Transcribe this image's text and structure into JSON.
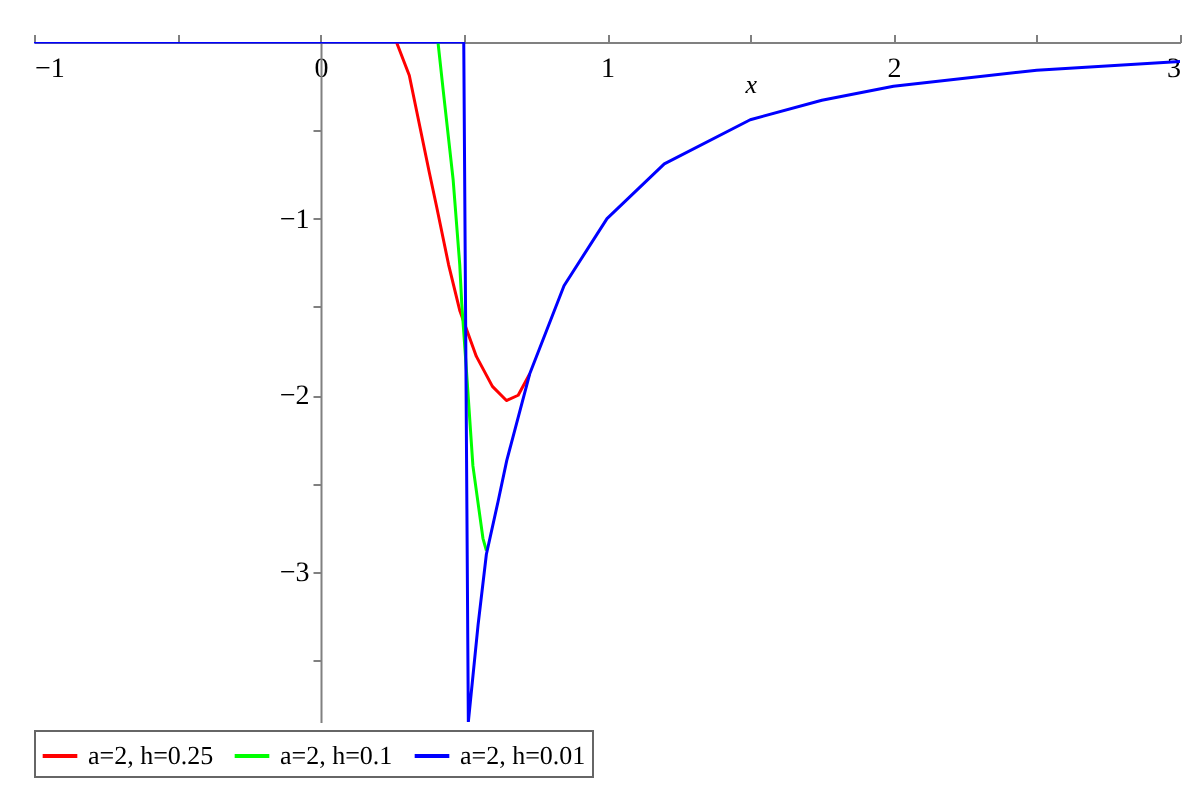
{
  "chart_data": {
    "type": "line",
    "xlabel": "x",
    "xlim": [
      -1,
      3
    ],
    "ylim": [
      -3.85,
      0
    ],
    "xticks": [
      -1,
      {
        "value": -0.5,
        "label": null
      },
      0,
      {
        "value": 0.5,
        "label": null
      },
      1,
      {
        "value": 1.5,
        "label": null
      },
      2,
      {
        "value": 2.5,
        "label": null
      },
      3
    ],
    "yticks": [
      {
        "value": -3.5,
        "label": null
      },
      -3,
      {
        "value": -2.5,
        "label": null
      },
      -2,
      {
        "value": -1.5,
        "label": null
      },
      -1,
      {
        "value": -0.5,
        "label": null
      }
    ],
    "grid": false,
    "legend": "bottom",
    "series": [
      {
        "name": "a=2, h=0.25",
        "color": "#ff0000",
        "x": [
          0.265,
          0.31,
          0.38,
          0.405,
          0.447,
          0.486,
          0.544,
          0.6,
          0.649,
          0.69,
          0.73
        ],
        "values": [
          0,
          -0.19,
          -0.74,
          -0.93,
          -1.26,
          -1.52,
          -1.78,
          -1.95,
          -2.03,
          -2.0,
          -1.88
        ]
      },
      {
        "name": "a=2, h=0.1",
        "color": "#00ff00",
        "x": [
          0.41,
          0.428,
          0.463,
          0.486,
          0.493,
          0.509,
          0.532,
          0.567,
          0.579
        ],
        "values": [
          0,
          -0.27,
          -0.78,
          -1.26,
          -1.48,
          -1.85,
          -2.4,
          -2.81,
          -2.88
        ]
      },
      {
        "name": "a=2, h=0.01",
        "color": "#0000ff",
        "x": [
          -1,
          0,
          0.5,
          0.516,
          0.55,
          0.579,
          0.62,
          0.65,
          0.73,
          0.85,
          1.0,
          1.2,
          1.5,
          1.75,
          2,
          2.5,
          3
        ],
        "values": [
          0,
          0,
          0,
          -3.85,
          -3.3,
          -2.9,
          -2.6,
          -2.37,
          -1.88,
          -1.38,
          -1.0,
          -0.69,
          -0.44,
          -0.33,
          -0.25,
          -0.16,
          -0.11
        ]
      }
    ]
  }
}
